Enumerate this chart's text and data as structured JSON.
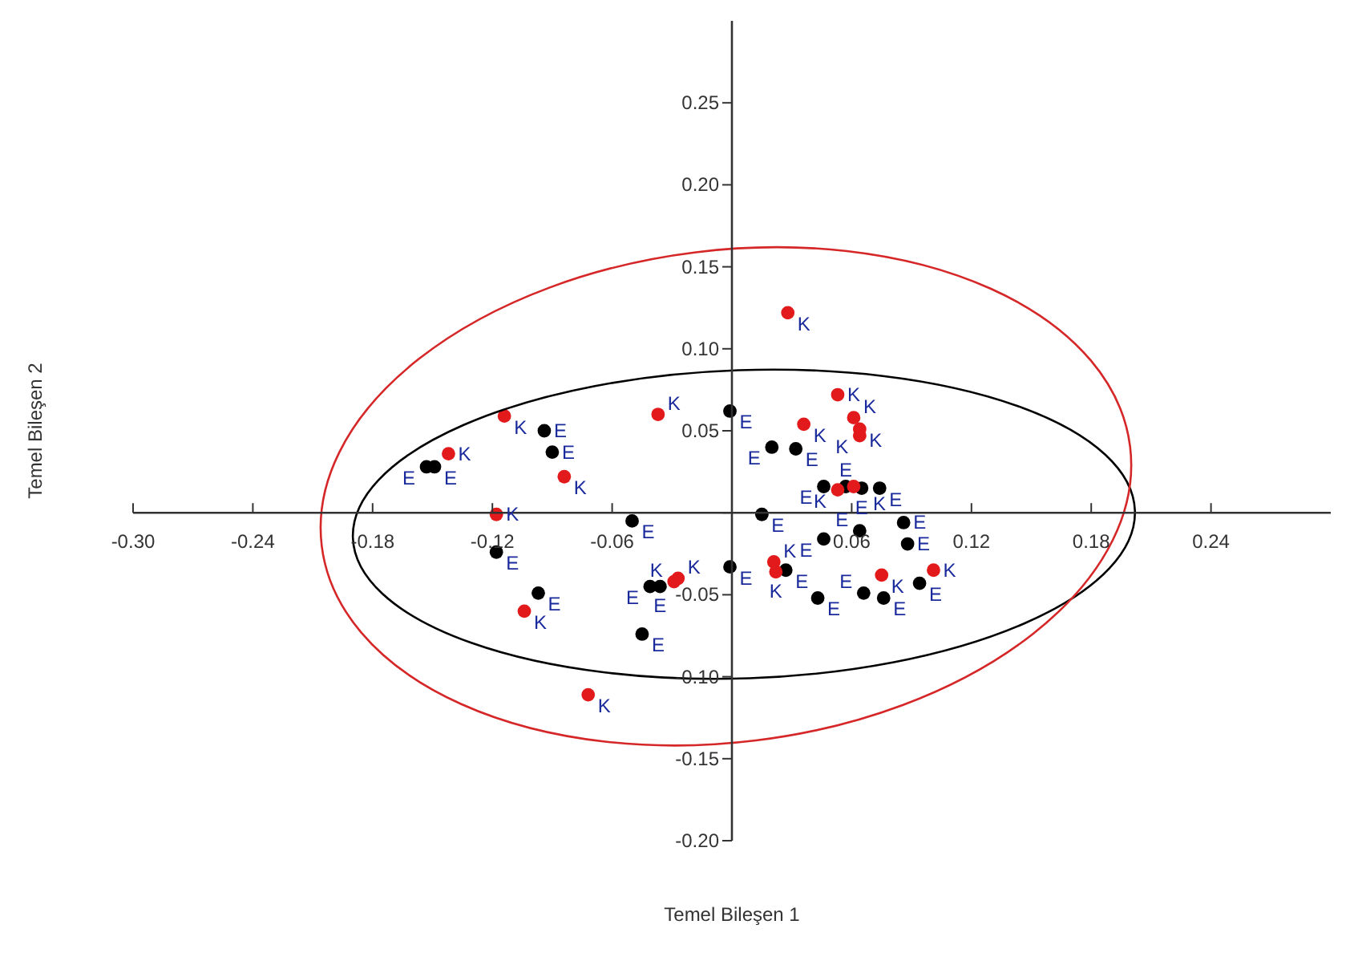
{
  "chart_data": {
    "type": "scatter",
    "xlabel": "Temel Bileşen 1",
    "ylabel": "Temel Bileşen 2",
    "xlim": [
      -0.3,
      0.3
    ],
    "ylim": [
      -0.2,
      0.3
    ],
    "xticks": [
      {
        "value": -0.3,
        "label": "-0.30"
      },
      -0.24,
      -0.18,
      -0.12,
      -0.06,
      {
        "value": 0,
        "label": null
      },
      0.06,
      0.12,
      0.18,
      0.24
    ],
    "yticks": [
      {
        "value": -0.2,
        "label": "-0.20"
      },
      -0.15,
      {
        "value": -0.1,
        "label": "-0.10"
      },
      -0.05,
      {
        "value": 0,
        "label": null
      },
      0.05,
      {
        "value": 0.1,
        "label": "0.10"
      },
      0.15,
      {
        "value": 0.2,
        "label": "0.20"
      },
      0.25
    ],
    "grid": false,
    "legend": false,
    "marker": "circle",
    "series": [
      {
        "name": "E",
        "color": "#000000",
        "x": [
          -0.001,
          0.02,
          0.032,
          -0.094,
          -0.09,
          -0.153,
          -0.149,
          -0.05,
          -0.118,
          -0.097,
          -0.045,
          -0.041,
          -0.036,
          -0.001,
          0.015,
          0.027,
          0.046,
          0.057,
          0.065,
          0.074,
          0.064,
          0.086,
          0.088,
          0.046,
          0.043,
          0.066,
          0.076,
          0.094
        ],
        "values": [
          0.062,
          0.04,
          0.039,
          0.05,
          0.037,
          0.028,
          0.028,
          -0.005,
          -0.024,
          -0.049,
          -0.074,
          -0.045,
          -0.045,
          -0.033,
          -0.001,
          -0.035,
          0.016,
          0.016,
          0.015,
          0.015,
          -0.011,
          -0.006,
          -0.019,
          -0.016,
          -0.052,
          -0.049,
          -0.052,
          -0.043
        ]
      },
      {
        "name": "K",
        "color": "#e31a1c",
        "x": [
          0.028,
          0.053,
          0.061,
          0.064,
          0.064,
          0.036,
          -0.037,
          -0.114,
          -0.142,
          -0.084,
          -0.118,
          -0.104,
          -0.072,
          -0.027,
          -0.029,
          0.021,
          0.022,
          0.075,
          0.101,
          0.053,
          0.061
        ],
        "values": [
          0.122,
          0.072,
          0.058,
          0.051,
          0.047,
          0.054,
          0.06,
          0.059,
          0.036,
          0.022,
          -0.001,
          -0.06,
          -0.111,
          -0.04,
          -0.042,
          -0.03,
          -0.036,
          -0.038,
          -0.035,
          0.014,
          0.016
        ]
      }
    ]
  }
}
